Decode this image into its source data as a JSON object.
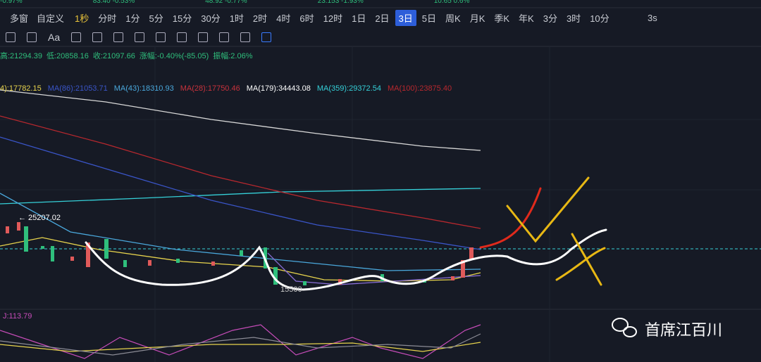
{
  "top_row": [
    "-0.97%",
    "83.40 -0.53%",
    "48.92 -0.77%",
    "23.153 -1.93%",
    "10.65 0.6%"
  ],
  "toolbar": {
    "left_label": "多窗",
    "custom": "自定义",
    "timeframes": [
      "1秒",
      "分时",
      "1分",
      "5分",
      "15分",
      "30分",
      "1时",
      "2时",
      "4时",
      "6时",
      "12时",
      "1日",
      "2日",
      "3日",
      "5日",
      "周K",
      "月K",
      "季K",
      "年K",
      "3分",
      "3时",
      "10分"
    ],
    "active_index": 13,
    "highlight_index": 0,
    "refresh": "3s",
    "font_icon": "Aa"
  },
  "ohlc": [
    "高:21294.39",
    "低:20858.16",
    "收:21097.66",
    "涨幅:-0.40%(-85.05)",
    "振幅:2.06%"
  ],
  "ma_labels": [
    {
      "text": "4):17782.15",
      "color": "#e8d44d"
    },
    {
      "text": "MA(86):21053.71",
      "color": "#3a55c8"
    },
    {
      "text": "MA(43):18310.93",
      "color": "#4aa8dc"
    },
    {
      "text": "MA(28):17750.46",
      "color": "#c8323c"
    },
    {
      "text": "MA(179):34443.08",
      "color": "#ffffff"
    },
    {
      "text": "MA(359):29372.54",
      "color": "#35d0d8"
    },
    {
      "text": "MA(100):23875.40",
      "color": "#b8282e"
    }
  ],
  "high_marker": "← 25207.02",
  "low_marker": "15500",
  "indicator_label": "J:113.79",
  "watermark": "首席江百川"
}
